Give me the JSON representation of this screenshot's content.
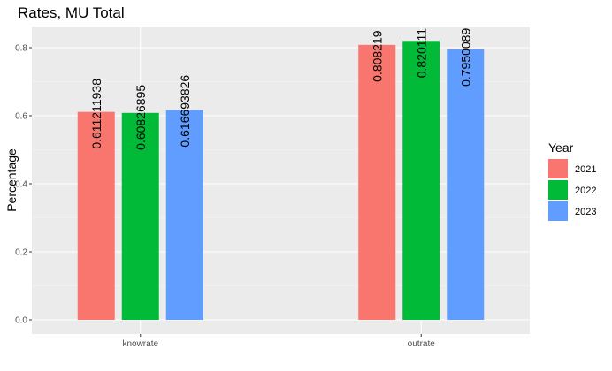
{
  "chart_data": {
    "type": "bar",
    "title": "Rates, MU Total",
    "xlabel": "",
    "ylabel": "Percentage",
    "categories": [
      "knowrate",
      "outrate"
    ],
    "ylim": [
      0,
      0.86
    ],
    "yticks": [
      0.0,
      0.2,
      0.4,
      0.6,
      0.8
    ],
    "ytick_labels": [
      "0.0",
      "0.2",
      "0.4",
      "0.6",
      "0.8"
    ],
    "legend": {
      "title": "Year",
      "position": "right"
    },
    "series": [
      {
        "name": "2021",
        "color": "#F8766D",
        "values": [
          0.611211938,
          0.808219
        ],
        "labels": [
          "0.611211938",
          "0.808219"
        ]
      },
      {
        "name": "2022",
        "color": "#00BA38",
        "values": [
          0.60826895,
          0.820111
        ],
        "labels": [
          "0.60826895",
          "0.820111"
        ]
      },
      {
        "name": "2023",
        "color": "#619CFF",
        "values": [
          0.616693826,
          0.7950089
        ],
        "labels": [
          "0.616693826",
          "0.7950089"
        ]
      }
    ],
    "panel_background": "#EBEBEB",
    "grid": true
  }
}
